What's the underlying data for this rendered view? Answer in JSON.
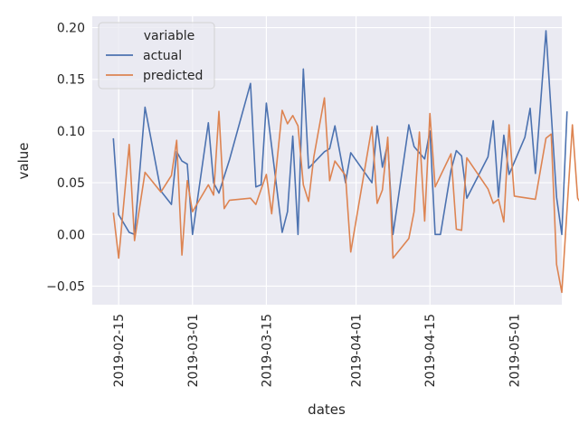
{
  "chart_data": {
    "type": "line",
    "xlabel": "dates",
    "ylabel": "value",
    "x_ticks": [
      "2019-02-15",
      "2019-03-01",
      "2019-03-15",
      "2019-04-01",
      "2019-04-15",
      "2019-05-01"
    ],
    "y_ticks": [
      "−0.05",
      "0.00",
      "0.05",
      "0.10",
      "0.15",
      "0.20"
    ],
    "xlim": [
      "2019-02-10",
      "2019-05-10"
    ],
    "ylim": [
      -0.068,
      0.211
    ],
    "grid": true,
    "legend": {
      "title": "variable",
      "placement": "top-left"
    },
    "series": [
      {
        "name": "actual",
        "color": "#4c72b0",
        "points": [
          [
            "2019-02-14",
            0.093
          ],
          [
            "2019-02-15",
            0.019
          ],
          [
            "2019-02-17",
            0.002
          ],
          [
            "2019-02-18",
            0.0
          ],
          [
            "2019-02-20",
            0.123
          ],
          [
            "2019-02-23",
            0.042
          ],
          [
            "2019-02-25",
            0.029
          ],
          [
            "2019-02-26",
            0.08
          ],
          [
            "2019-02-27",
            0.071
          ],
          [
            "2019-02-28",
            0.068
          ],
          [
            "2019-03-01",
            0.0
          ],
          [
            "2019-03-04",
            0.108
          ],
          [
            "2019-03-05",
            0.05
          ],
          [
            "2019-03-06",
            0.04
          ],
          [
            "2019-03-08",
            0.072
          ],
          [
            "2019-03-12",
            0.146
          ],
          [
            "2019-03-13",
            0.046
          ],
          [
            "2019-03-14",
            0.048
          ],
          [
            "2019-03-15",
            0.127
          ],
          [
            "2019-03-18",
            0.002
          ],
          [
            "2019-03-19",
            0.022
          ],
          [
            "2019-03-20",
            0.095
          ],
          [
            "2019-03-21",
            0.0
          ],
          [
            "2019-03-22",
            0.16
          ],
          [
            "2019-03-23",
            0.064
          ],
          [
            "2019-03-26",
            0.08
          ],
          [
            "2019-03-27",
            0.083
          ],
          [
            "2019-03-28",
            0.105
          ],
          [
            "2019-03-30",
            0.05
          ],
          [
            "2019-03-31",
            0.079
          ],
          [
            "2019-04-04",
            0.05
          ],
          [
            "2019-04-05",
            0.105
          ],
          [
            "2019-04-06",
            0.065
          ],
          [
            "2019-04-07",
            0.088
          ],
          [
            "2019-04-08",
            0.0
          ],
          [
            "2019-04-11",
            0.106
          ],
          [
            "2019-04-12",
            0.085
          ],
          [
            "2019-04-14",
            0.073
          ],
          [
            "2019-04-15",
            0.1
          ],
          [
            "2019-04-16",
            0.0
          ],
          [
            "2019-04-17",
            0.0
          ],
          [
            "2019-04-19",
            0.062
          ],
          [
            "2019-04-20",
            0.081
          ],
          [
            "2019-04-21",
            0.076
          ],
          [
            "2019-04-22",
            0.035
          ],
          [
            "2019-04-26",
            0.075
          ],
          [
            "2019-04-27",
            0.11
          ],
          [
            "2019-04-28",
            0.036
          ],
          [
            "2019-04-29",
            0.096
          ],
          [
            "2019-04-30",
            0.058
          ],
          [
            "2019-05-03",
            0.094
          ],
          [
            "2019-05-04",
            0.122
          ],
          [
            "2019-05-05",
            0.059
          ],
          [
            "2019-05-07",
            0.197
          ],
          [
            "2019-05-09",
            0.036
          ],
          [
            "2019-05-10",
            0.0
          ],
          [
            "2019-05-11",
            0.119
          ]
        ]
      },
      {
        "name": "predicted",
        "color": "#dd8452",
        "points": [
          [
            "2019-02-14",
            0.021
          ],
          [
            "2019-02-15",
            -0.023
          ],
          [
            "2019-02-17",
            0.087
          ],
          [
            "2019-02-18",
            -0.006
          ],
          [
            "2019-02-20",
            0.06
          ],
          [
            "2019-02-23",
            0.041
          ],
          [
            "2019-02-25",
            0.057
          ],
          [
            "2019-02-26",
            0.091
          ],
          [
            "2019-02-27",
            -0.02
          ],
          [
            "2019-02-28",
            0.052
          ],
          [
            "2019-03-01",
            0.022
          ],
          [
            "2019-03-04",
            0.048
          ],
          [
            "2019-03-05",
            0.038
          ],
          [
            "2019-03-06",
            0.119
          ],
          [
            "2019-03-07",
            0.025
          ],
          [
            "2019-03-08",
            0.033
          ],
          [
            "2019-03-12",
            0.035
          ],
          [
            "2019-03-13",
            0.029
          ],
          [
            "2019-03-15",
            0.058
          ],
          [
            "2019-03-16",
            0.02
          ],
          [
            "2019-03-18",
            0.12
          ],
          [
            "2019-03-19",
            0.107
          ],
          [
            "2019-03-20",
            0.115
          ],
          [
            "2019-03-21",
            0.105
          ],
          [
            "2019-03-22",
            0.048
          ],
          [
            "2019-03-23",
            0.032
          ],
          [
            "2019-03-24",
            0.075
          ],
          [
            "2019-03-26",
            0.132
          ],
          [
            "2019-03-27",
            0.052
          ],
          [
            "2019-03-28",
            0.071
          ],
          [
            "2019-03-30",
            0.057
          ],
          [
            "2019-03-31",
            -0.017
          ],
          [
            "2019-04-04",
            0.104
          ],
          [
            "2019-04-05",
            0.03
          ],
          [
            "2019-04-06",
            0.043
          ],
          [
            "2019-04-07",
            0.094
          ],
          [
            "2019-04-08",
            -0.023
          ],
          [
            "2019-04-11",
            -0.004
          ],
          [
            "2019-04-12",
            0.022
          ],
          [
            "2019-04-13",
            0.099
          ],
          [
            "2019-04-14",
            0.013
          ],
          [
            "2019-04-15",
            0.117
          ],
          [
            "2019-04-16",
            0.046
          ],
          [
            "2019-04-19",
            0.078
          ],
          [
            "2019-04-20",
            0.005
          ],
          [
            "2019-04-21",
            0.004
          ],
          [
            "2019-04-22",
            0.074
          ],
          [
            "2019-04-26",
            0.044
          ],
          [
            "2019-04-27",
            0.03
          ],
          [
            "2019-04-28",
            0.034
          ],
          [
            "2019-04-29",
            0.012
          ],
          [
            "2019-04-30",
            0.106
          ],
          [
            "2019-05-01",
            0.037
          ],
          [
            "2019-05-05",
            0.034
          ],
          [
            "2019-05-07",
            0.093
          ],
          [
            "2019-05-08",
            0.097
          ],
          [
            "2019-05-09",
            -0.029
          ],
          [
            "2019-05-10",
            -0.056
          ],
          [
            "2019-05-12",
            0.106
          ],
          [
            "2019-05-13",
            0.035
          ],
          [
            "2019-05-14",
            0.027
          ],
          [
            "2019-05-15",
            0.06
          ]
        ]
      }
    ]
  }
}
